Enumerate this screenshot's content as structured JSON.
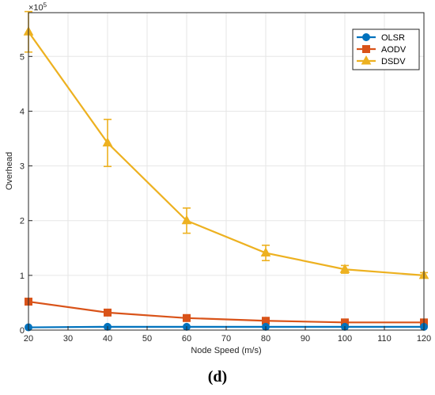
{
  "chart_data": {
    "type": "line",
    "xlabel": "Node Speed (m/s)",
    "ylabel": "Overhead",
    "x": [
      20,
      40,
      60,
      80,
      100,
      120
    ],
    "xlim": [
      20,
      120
    ],
    "ylim": [
      0,
      580000
    ],
    "xticks": [
      "20",
      "30",
      "40",
      "50",
      "60",
      "70",
      "80",
      "90",
      "100",
      "110",
      "120"
    ],
    "yticks": [
      "0",
      "1",
      "2",
      "3",
      "4",
      "5"
    ],
    "y_exponent_base": "×10",
    "y_exponent_power": "5",
    "grid": true,
    "legend_position": "top-right",
    "series": [
      {
        "name": "OLSR",
        "color": "#0072BD",
        "marker": "circle",
        "values": [
          5000,
          6000,
          6000,
          6000,
          6000,
          6000
        ],
        "errors": [
          0,
          0,
          0,
          0,
          0,
          0
        ]
      },
      {
        "name": "AODV",
        "color": "#D95319",
        "marker": "square",
        "values": [
          52000,
          32000,
          22000,
          17000,
          14000,
          14000
        ],
        "errors": [
          0,
          0,
          0,
          0,
          0,
          0
        ]
      },
      {
        "name": "DSDV",
        "color": "#EDB120",
        "marker": "triangle",
        "values": [
          545000,
          342000,
          200000,
          141000,
          111000,
          100000
        ],
        "errors": [
          37000,
          43000,
          23000,
          14000,
          7000,
          5000
        ]
      }
    ]
  },
  "panel_label": "(d)"
}
